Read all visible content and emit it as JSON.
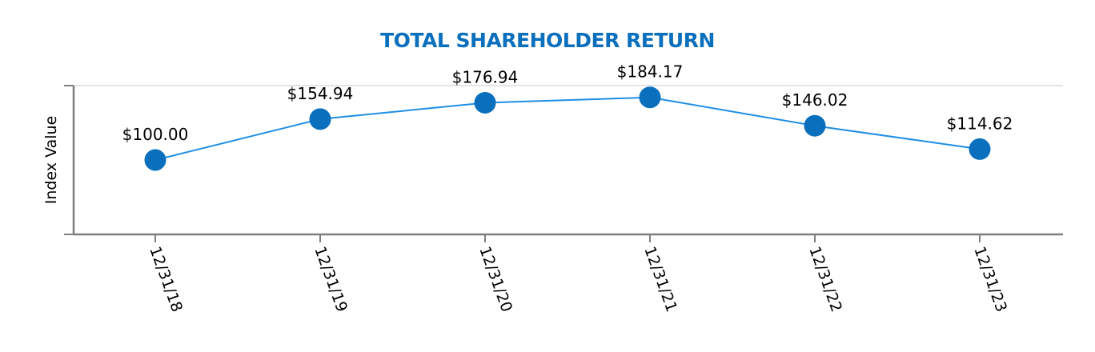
{
  "chart_data": {
    "type": "line",
    "title": "TOTAL SHAREHOLDER RETURN",
    "xlabel": "",
    "ylabel": "Index Value",
    "categories": [
      "12/31/18",
      "12/31/19",
      "12/31/20",
      "12/31/21",
      "12/31/22",
      "12/31/23"
    ],
    "series": [
      {
        "name": "Total Shareholder Return",
        "values": [
          100.0,
          154.94,
          176.94,
          184.17,
          146.02,
          114.62
        ],
        "labels": [
          "$100.00",
          "$154.94",
          "$176.94",
          "$184.17",
          "$146.02",
          "$114.62"
        ],
        "color": "#0a6fbd"
      }
    ],
    "ylim": [
      0,
      200
    ],
    "grid": true,
    "legend": "none",
    "xtick_rotation": 70
  },
  "colors": {
    "title": "#0a6fbd",
    "line": "#1e8ee6",
    "marker": "#0a6fbd",
    "axis": "#7f7f7f",
    "grid": "#e3e3e3"
  }
}
